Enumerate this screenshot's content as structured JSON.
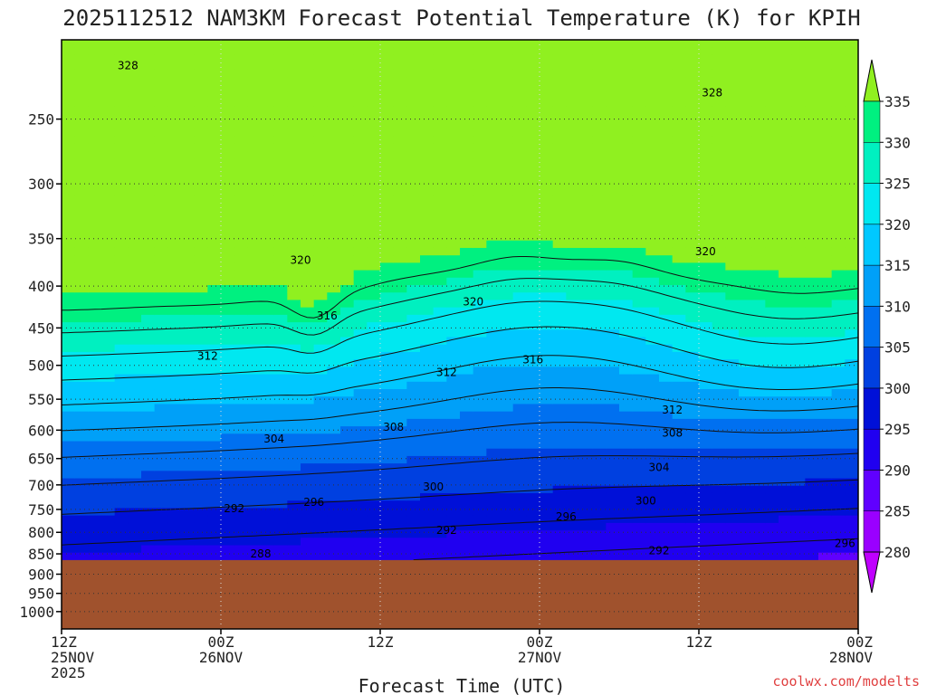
{
  "chart_data": {
    "type": "heatmap",
    "title": "2025112512 NAM3KM Forecast Potential Temperature (K) for KPIH",
    "xlabel": "Forecast Time (UTC)",
    "ylabel": "",
    "x_ticks": [
      {
        "hours": 0,
        "lines": [
          "12Z",
          "25NOV",
          "2025"
        ]
      },
      {
        "hours": 12,
        "lines": [
          "00Z",
          "26NOV"
        ]
      },
      {
        "hours": 24,
        "lines": [
          "12Z"
        ]
      },
      {
        "hours": 36,
        "lines": [
          "00Z",
          "27NOV"
        ]
      },
      {
        "hours": 48,
        "lines": [
          "12Z"
        ]
      },
      {
        "hours": 60,
        "lines": [
          "00Z",
          "28NOV"
        ]
      }
    ],
    "xlim": [
      0,
      60
    ],
    "y_ticks": [
      250,
      300,
      350,
      400,
      450,
      500,
      550,
      600,
      650,
      700,
      750,
      800,
      850,
      900,
      950,
      1000
    ],
    "ylim": [
      200,
      1050
    ],
    "y_scale": "log-pressure (inverted)",
    "colorbar": {
      "levels": [
        280,
        285,
        290,
        295,
        300,
        305,
        310,
        315,
        320,
        325,
        330,
        335
      ],
      "colors": [
        "#c000ff",
        "#9a00ff",
        "#6000ff",
        "#2000f0",
        "#0010d8",
        "#0040e0",
        "#0070f0",
        "#00a0f8",
        "#00c8ff",
        "#00e8f0",
        "#00f0c0",
        "#00f080",
        "#30f040",
        "#90f020"
      ],
      "ground_color": "#a0522d"
    },
    "ground_pressure": 865,
    "contour_labels": [
      {
        "text": "328",
        "hours": 5,
        "p": 215
      },
      {
        "text": "328",
        "hours": 49,
        "p": 232
      },
      {
        "text": "320",
        "hours": 18,
        "p": 372
      },
      {
        "text": "320",
        "hours": 48.5,
        "p": 363
      },
      {
        "text": "320",
        "hours": 31,
        "p": 418
      },
      {
        "text": "316",
        "hours": 20,
        "p": 435
      },
      {
        "text": "316",
        "hours": 35.5,
        "p": 492
      },
      {
        "text": "312",
        "hours": 11,
        "p": 487
      },
      {
        "text": "312",
        "hours": 29,
        "p": 510
      },
      {
        "text": "312",
        "hours": 46,
        "p": 567
      },
      {
        "text": "308",
        "hours": 25,
        "p": 595
      },
      {
        "text": "308",
        "hours": 46,
        "p": 605
      },
      {
        "text": "304",
        "hours": 16,
        "p": 615
      },
      {
        "text": "304",
        "hours": 45,
        "p": 666
      },
      {
        "text": "300",
        "hours": 28,
        "p": 704
      },
      {
        "text": "300",
        "hours": 44,
        "p": 732
      },
      {
        "text": "296",
        "hours": 19,
        "p": 735
      },
      {
        "text": "296",
        "hours": 38,
        "p": 766
      },
      {
        "text": "296",
        "hours": 59,
        "p": 825
      },
      {
        "text": "292",
        "hours": 13,
        "p": 748
      },
      {
        "text": "292",
        "hours": 29,
        "p": 795
      },
      {
        "text": "292",
        "hours": 45,
        "p": 842
      },
      {
        "text": "288",
        "hours": 15,
        "p": 850
      }
    ],
    "credit": "coolwx.com/modelts"
  }
}
